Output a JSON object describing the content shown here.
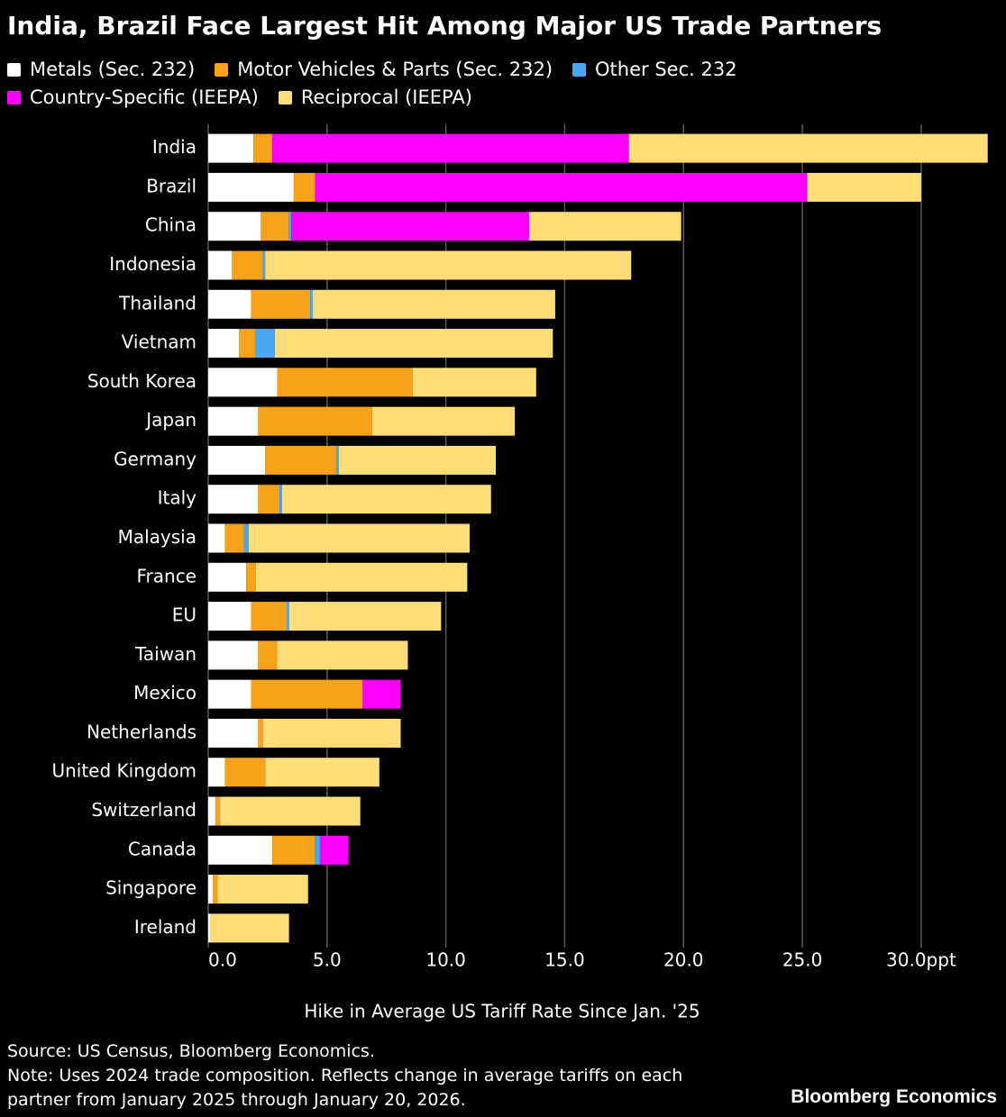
{
  "chart_data": {
    "type": "stacked-barh",
    "title": "India, Brazil Face Largest Hit Among Major US Trade Partners",
    "x_label": "Hike in Average US Tariff Rate Since Jan. '25",
    "source": "Source: US Census, Bloomberg Economics.",
    "note": "Note: Uses 2024 trade composition. Reflects change in average tariffs on each partner from January 2025 through January 20, 2026.",
    "brand": "Bloomberg Economics",
    "categories": [
      "India",
      "Brazil",
      "China",
      "Indonesia",
      "Thailand",
      "Vietnam",
      "South Korea",
      "Japan",
      "Germany",
      "Italy",
      "Malaysia",
      "France",
      "EU",
      "Taiwan",
      "Mexico",
      "Netherlands",
      "United Kingdom",
      "Switzerland",
      "Canada",
      "Singapore",
      "Ireland"
    ],
    "series": [
      {
        "name": "Metals (Sec. 232)",
        "color": "#ffffff",
        "values": [
          1.9,
          3.6,
          2.2,
          1.0,
          1.8,
          1.3,
          2.9,
          2.1,
          2.4,
          2.1,
          0.7,
          1.6,
          1.8,
          2.1,
          1.8,
          2.1,
          0.7,
          0.3,
          2.7,
          0.2,
          0.1
        ]
      },
      {
        "name": "Motor Vehicles & Parts (Sec. 232)",
        "color": "#f7a21b",
        "values": [
          0.8,
          0.9,
          1.2,
          1.3,
          2.5,
          0.7,
          5.7,
          4.8,
          3.0,
          0.9,
          0.8,
          0.4,
          1.5,
          0.8,
          4.7,
          0.2,
          1.7,
          0.2,
          1.8,
          0.2,
          0
        ]
      },
      {
        "name": "Other Sec. 232",
        "color": "#4aa8f0",
        "values": [
          0,
          0,
          0.1,
          0.1,
          0.1,
          0.8,
          0,
          0,
          0.1,
          0.1,
          0.2,
          0,
          0.1,
          0,
          0,
          0,
          0,
          0,
          0.2,
          0,
          0
        ]
      },
      {
        "name": "Country-Specific (IEEPA)",
        "color": "#ff00ff",
        "values": [
          15.0,
          20.7,
          10.0,
          0,
          0,
          0,
          0,
          0,
          0,
          0,
          0,
          0,
          0,
          0,
          1.6,
          0,
          0,
          0,
          1.2,
          0,
          0
        ]
      },
      {
        "name": "Reciprocal (IEEPA)",
        "color": "#fedd78",
        "values": [
          15.1,
          4.8,
          6.4,
          15.4,
          10.2,
          11.7,
          5.2,
          6.0,
          6.6,
          8.8,
          9.3,
          8.9,
          6.4,
          5.5,
          0,
          5.8,
          4.8,
          5.9,
          0,
          3.8,
          3.3
        ]
      }
    ],
    "xlim": [
      0,
      33
    ],
    "xticks": [
      {
        "value": 0,
        "label": "0.0"
      },
      {
        "value": 5,
        "label": "5.0"
      },
      {
        "value": 10,
        "label": "10.0"
      },
      {
        "value": 15,
        "label": "15.0"
      },
      {
        "value": 20,
        "label": "20.0"
      },
      {
        "value": 25,
        "label": "25.0"
      },
      {
        "value": 30,
        "label": "30.0ppt"
      }
    ],
    "grid": true
  }
}
